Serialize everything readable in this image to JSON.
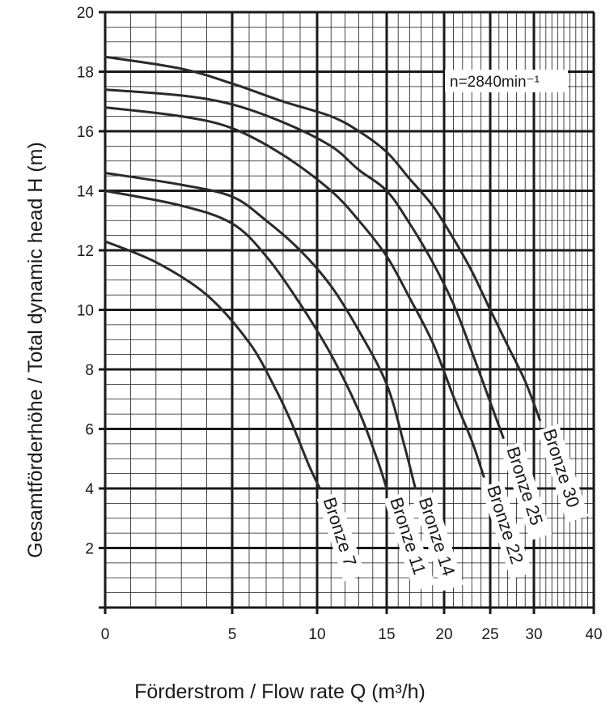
{
  "chart_data": {
    "type": "line",
    "title": "",
    "xlabel": "Förderstrom / Flow rate Q (m³/h)",
    "ylabel": "Gesamtförderhöhe / Total dynamic head H (m)",
    "annotation": "n=2840min⁻¹",
    "grid": true,
    "x_scale": "nonlinear (square-root-like) — tick labels as printed",
    "xticks": [
      0,
      5,
      10,
      15,
      20,
      25,
      30,
      40
    ],
    "yticks": [
      2,
      4,
      6,
      8,
      10,
      12,
      14,
      16,
      18,
      20
    ],
    "xlim": [
      0,
      40
    ],
    "ylim": [
      0,
      20
    ],
    "series": [
      {
        "name": "Bronze 7",
        "x": [
          0,
          2,
          4,
          6,
          7.5,
          8.5,
          9.5,
          10.2
        ],
        "y": [
          12.3,
          11.6,
          10.5,
          8.9,
          7.4,
          6.2,
          4.8,
          4.0
        ]
      },
      {
        "name": "Bronze 11",
        "x": [
          0,
          3,
          5,
          7,
          9,
          11,
          13,
          14.3,
          15
        ],
        "y": [
          14.0,
          13.5,
          12.9,
          11.8,
          10.2,
          8.5,
          6.6,
          5.0,
          4.0
        ]
      },
      {
        "name": "Bronze 14",
        "x": [
          0,
          3,
          5,
          7,
          9,
          11,
          13,
          15,
          16.5,
          17.5
        ],
        "y": [
          14.6,
          14.2,
          13.8,
          13.0,
          12.0,
          10.8,
          9.3,
          7.5,
          5.5,
          4.0
        ]
      },
      {
        "name": "Bronze 22",
        "x": [
          0,
          3,
          5,
          8,
          11,
          13,
          15,
          17,
          19,
          21,
          23,
          24.3
        ],
        "y": [
          16.8,
          16.5,
          16.1,
          15.2,
          14.0,
          13.0,
          11.8,
          10.4,
          8.9,
          7.1,
          5.6,
          4.4
        ]
      },
      {
        "name": "Bronze 25",
        "x": [
          0,
          3,
          5,
          8,
          11,
          13,
          15,
          17,
          19,
          21,
          23,
          25,
          26.5
        ],
        "y": [
          17.4,
          17.2,
          16.9,
          16.3,
          15.5,
          14.7,
          14.0,
          12.9,
          11.6,
          10.2,
          8.6,
          6.9,
          5.7
        ]
      },
      {
        "name": "Bronze 30",
        "x": [
          0,
          3,
          5,
          8,
          11,
          13,
          15,
          17,
          19,
          21,
          23,
          25,
          27,
          29,
          31
        ],
        "y": [
          18.5,
          18.1,
          17.6,
          17.0,
          16.5,
          16.0,
          15.3,
          14.4,
          13.5,
          12.4,
          11.3,
          10.0,
          8.8,
          7.6,
          6.3
        ]
      }
    ]
  }
}
